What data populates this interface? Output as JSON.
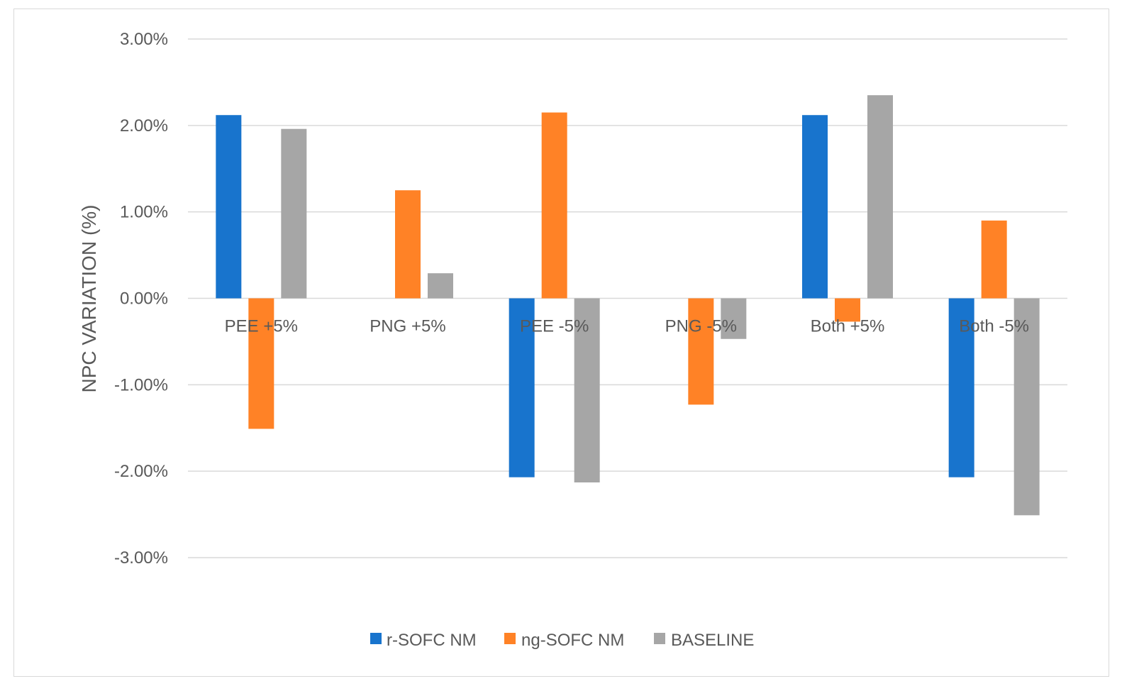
{
  "chart_data": {
    "type": "bar",
    "title": "",
    "xlabel": "",
    "ylabel": "NPC VARIATION (%)",
    "ylim": [
      -3.0,
      3.0
    ],
    "ytick_values": [
      3.0,
      2.0,
      1.0,
      0.0,
      -1.0,
      -2.0,
      -3.0
    ],
    "yticks": [
      "3.00%",
      "2.00%",
      "1.00%",
      "0.00%",
      "-1.00%",
      "-2.00%",
      "-3.00%"
    ],
    "categories": [
      "PEE +5%",
      "PNG +5%",
      "PEE -5%",
      "PNG -5%",
      "Both +5%",
      "Both -5%"
    ],
    "series": [
      {
        "name": "r-SOFC NM",
        "color": "#1874CD",
        "values": [
          2.12,
          0.0,
          -2.07,
          0.0,
          2.12,
          -2.07
        ]
      },
      {
        "name": "ng-SOFC NM",
        "color": "#FF8226",
        "values": [
          -1.51,
          1.25,
          2.15,
          -1.23,
          -0.27,
          0.9
        ]
      },
      {
        "name": "BASELINE",
        "color": "#A6A6A6",
        "values": [
          1.96,
          0.29,
          -2.13,
          -0.47,
          2.35,
          -2.51
        ]
      }
    ],
    "grid": true,
    "legend": "bottom-center"
  }
}
